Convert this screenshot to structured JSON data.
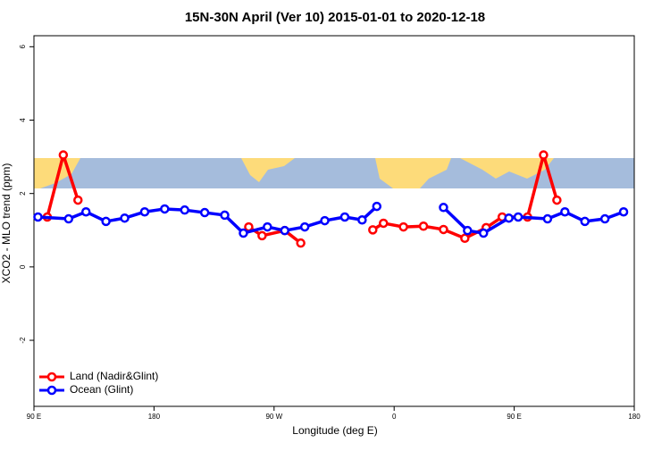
{
  "chart_data": {
    "type": "line",
    "title": "15N-30N April (Ver 10)   2015-01-01 to 2020-12-18",
    "x_label": "Longitude (deg E)",
    "y_label": "XCO2 - MLO trend (ppm)",
    "xlim": [
      90,
      540
    ],
    "xticks": [
      {
        "value": 90,
        "label": "90 E"
      },
      180,
      {
        "value": 270,
        "label": "90 W"
      },
      {
        "value": 360,
        "label": "0"
      },
      {
        "value": 450,
        "label": "90 E"
      },
      {
        "value": 540,
        "label": "180"
      }
    ],
    "ylim": [
      -3.8,
      6.3
    ],
    "yticks": [
      -2,
      0,
      2,
      4,
      6
    ],
    "legend": "bottom-left",
    "series": [
      {
        "name": "Land (Nadir&Glint)",
        "color": "#ff0000",
        "x": [
          100,
          112,
          123,
          null,
          251,
          261,
          278,
          290,
          null,
          344,
          352,
          367,
          382,
          397,
          413,
          429,
          441,
          460,
          472,
          482
        ],
        "values": [
          1.36,
          3.05,
          1.82,
          null,
          1.09,
          0.85,
          0.99,
          0.65,
          null,
          1.01,
          1.19,
          1.09,
          1.11,
          1.02,
          0.78,
          1.07,
          1.36,
          1.36,
          3.05,
          1.82
        ]
      },
      {
        "name": "Ocean (Glint)",
        "color": "#0000ff",
        "x": [
          93,
          116,
          129,
          144,
          158,
          173,
          188,
          203,
          218,
          233,
          247,
          265,
          278,
          293,
          308,
          323,
          336,
          347,
          null,
          397,
          415,
          427,
          446,
          453,
          475,
          488,
          503,
          518,
          532
        ],
        "values": [
          1.36,
          1.31,
          1.5,
          1.24,
          1.33,
          1.5,
          1.58,
          1.55,
          1.48,
          1.41,
          0.92,
          1.09,
          0.99,
          1.09,
          1.26,
          1.36,
          1.28,
          1.65,
          null,
          1.62,
          0.99,
          0.92,
          1.33,
          1.36,
          1.31,
          1.5,
          1.24,
          1.31,
          1.5
        ]
      }
    ]
  }
}
